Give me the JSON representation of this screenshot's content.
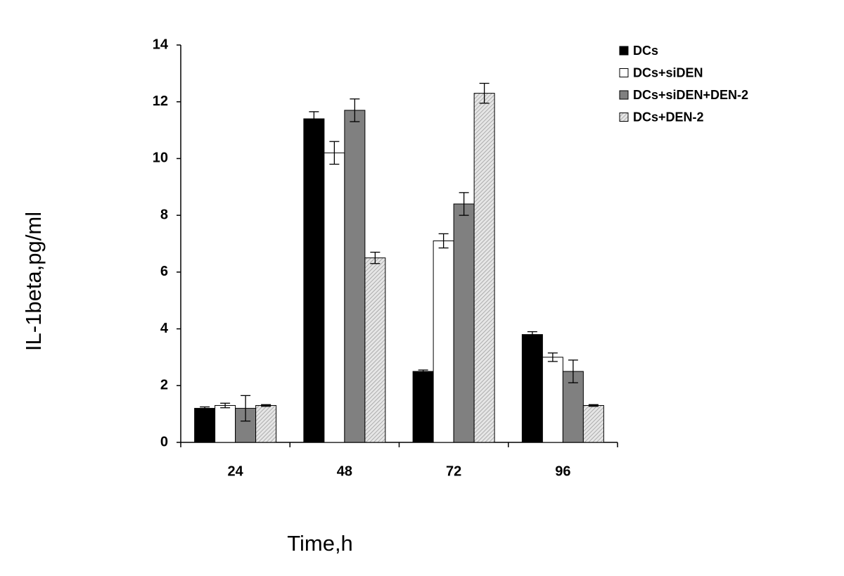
{
  "chart_data": {
    "type": "bar",
    "y_label": "IL-1beta,pg/ml",
    "x_label": "Time,h",
    "categories": [
      "24",
      "48",
      "72",
      "96"
    ],
    "series": [
      {
        "name": "DCs",
        "color": "#000000",
        "values": [
          1.2,
          11.4,
          2.5,
          3.8
        ],
        "errors": [
          0.05,
          0.25,
          0.05,
          0.1
        ]
      },
      {
        "name": "DCs+siDEN",
        "color": "#ffffff",
        "values": [
          1.3,
          10.2,
          7.1,
          3.0
        ],
        "errors": [
          0.08,
          0.4,
          0.25,
          0.15
        ]
      },
      {
        "name": "DCs+siDEN+DEN-2",
        "color": "#808080",
        "values": [
          1.2,
          11.7,
          8.4,
          2.5
        ],
        "errors": [
          0.45,
          0.4,
          0.4,
          0.4
        ]
      },
      {
        "name": "DCs+DEN-2",
        "color": "#d9d9d9",
        "hatch": true,
        "values": [
          1.3,
          6.5,
          12.3,
          1.3
        ],
        "errors": [
          0.03,
          0.2,
          0.35,
          0.03
        ]
      }
    ],
    "ylim": [
      0,
      14
    ],
    "yticks": [
      0,
      2,
      4,
      6,
      8,
      10,
      12,
      14
    ],
    "grid": false,
    "legend": "right"
  }
}
